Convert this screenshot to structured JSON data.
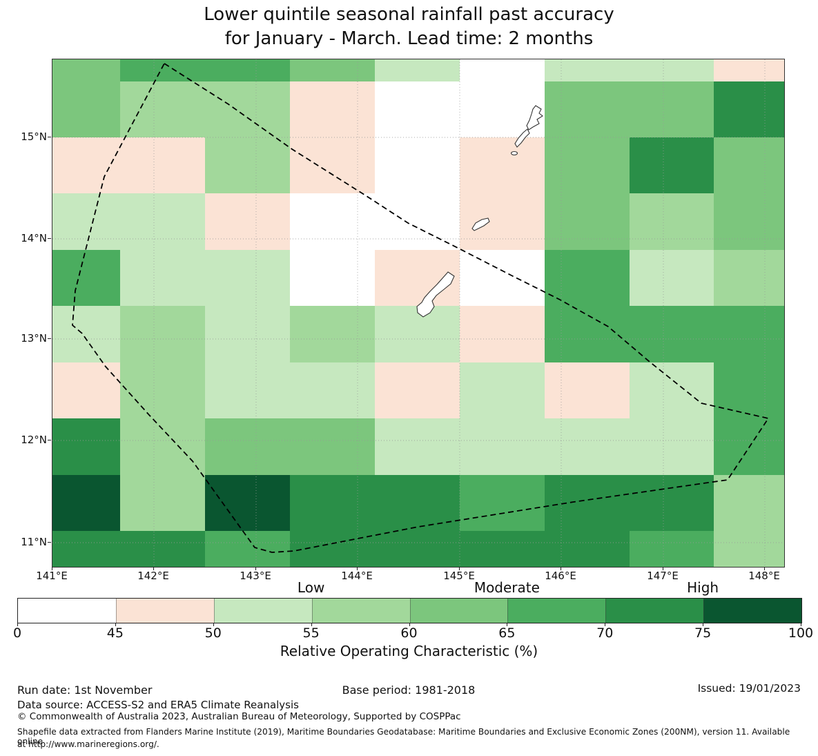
{
  "title": {
    "line1": "Lower quintile seasonal rainfall past accuracy",
    "line2": "for January - March. Lead time: 2 months"
  },
  "axes": {
    "x_ticks": [
      "141°E",
      "142°E",
      "143°E",
      "144°E",
      "145°E",
      "146°E",
      "147°E",
      "148°E"
    ],
    "y_ticks": [
      "15°N",
      "14°N",
      "13°N",
      "12°N",
      "11°N"
    ]
  },
  "chart_data": {
    "type": "heatmap",
    "title": "Lower quintile seasonal rainfall past accuracy for January - March. Lead time: 2 months",
    "xlabel": "Relative Operating Characteristic (%)",
    "x_range": [
      "141°E",
      "148°E"
    ],
    "y_range": [
      "11°N",
      "15°N"
    ],
    "grid_note": "ACCESS-S2 model grid cells (~0.83° lon × 0.56° lat), color = ROC % bin",
    "palette": {
      "W": {
        "range": "0-45",
        "color": "#ffffff"
      },
      "P": {
        "range": "45-50",
        "color": "#fbe3d5"
      },
      "L1": {
        "range": "50-55",
        "color": "#c6e8bf"
      },
      "L2": {
        "range": "55-60",
        "color": "#a2d89b"
      },
      "L3": {
        "range": "60-65",
        "color": "#7cc67d"
      },
      "L4": {
        "range": "65-70",
        "color": "#4bad5f"
      },
      "L5": {
        "range": "70-75",
        "color": "#2a8f48"
      },
      "L6": {
        "range": "75-100",
        "color": "#0a5630"
      }
    },
    "rows_lat_top_to_bottom": [
      "15.8-15.6",
      "15.6-15.0",
      "15.0-14.4",
      "14.4-13.9",
      "13.9-13.3",
      "13.3-12.8",
      "12.8-12.2",
      "12.2-11.7",
      "11.7-11.1",
      "11.1-10.8"
    ],
    "cols_lon_left_to_right": [
      "141.0-141.7",
      "141.7-142.5",
      "142.5-143.3",
      "143.3-144.2",
      "144.2-145.0",
      "145.0-145.8",
      "145.8-146.7",
      "146.7-147.5",
      "147.5-148.2"
    ],
    "cells": [
      [
        "L3",
        "L4",
        "L4",
        "L3",
        "L1",
        "W",
        "L1",
        "L1",
        "P"
      ],
      [
        "L3",
        "L2",
        "L2",
        "P",
        "W",
        "W",
        "L3",
        "L3",
        "L5"
      ],
      [
        "P",
        "P",
        "L2",
        "P",
        "W",
        "P",
        "L3",
        "L5",
        "L3"
      ],
      [
        "L1",
        "L1",
        "P",
        "W",
        "W",
        "P",
        "L3",
        "L2",
        "L3"
      ],
      [
        "L4",
        "L1",
        "L1",
        "W",
        "P",
        "W",
        "L4",
        "L1",
        "L2"
      ],
      [
        "L1",
        "L2",
        "L1",
        "L2",
        "L1",
        "P",
        "L4",
        "L4",
        "L4"
      ],
      [
        "P",
        "L2",
        "L1",
        "L1",
        "P",
        "L1",
        "P",
        "L1",
        "L4"
      ],
      [
        "L5",
        "L2",
        "L3",
        "L3",
        "L1",
        "L1",
        "L1",
        "L1",
        "L4"
      ],
      [
        "L6",
        "L2",
        "L6",
        "L5",
        "L5",
        "L4",
        "L5",
        "L5",
        "L2"
      ],
      [
        "L5",
        "L5",
        "L4",
        "L5",
        "L5",
        "L5",
        "L5",
        "L4",
        "L2"
      ]
    ],
    "colorbar": {
      "segment_order": [
        "W",
        "P",
        "L1",
        "L2",
        "L3",
        "L4",
        "L5",
        "L6"
      ],
      "ticks": [
        "0",
        "45",
        "50",
        "55",
        "60",
        "65",
        "70",
        "75",
        "100"
      ],
      "region_labels": [
        "Low",
        "Moderate",
        "High"
      ],
      "xlabel": "Relative Operating Characteristic (%)",
      "legend_position": "bottom"
    },
    "overlays": [
      "eez-dashed-boundary",
      "island-saipan",
      "island-tinian",
      "island-aguijan",
      "island-rota",
      "island-guam",
      "degree-gridlines"
    ]
  },
  "footer": {
    "run_date": "Run date: 1st November",
    "base_period": "Base period: 1981-2018",
    "issued": "Issued: 19/01/2023",
    "data_source": "Data source: ACCESS-S2 and ERA5 Climate Reanalysis",
    "copyright": "© Commonwealth of Australia 2023, Australian Bureau of Meteorology, Supported by COSPPac",
    "shapefile_line1": "Shapefile data extracted from Flanders Marine Institute (2019), Maritime Boundaries Geodatabase: Maritime Boundaries and Exclusive Economic Zones (200NM), version 11. Available online",
    "shapefile_line2": "at http://www.marineregions.org/."
  }
}
